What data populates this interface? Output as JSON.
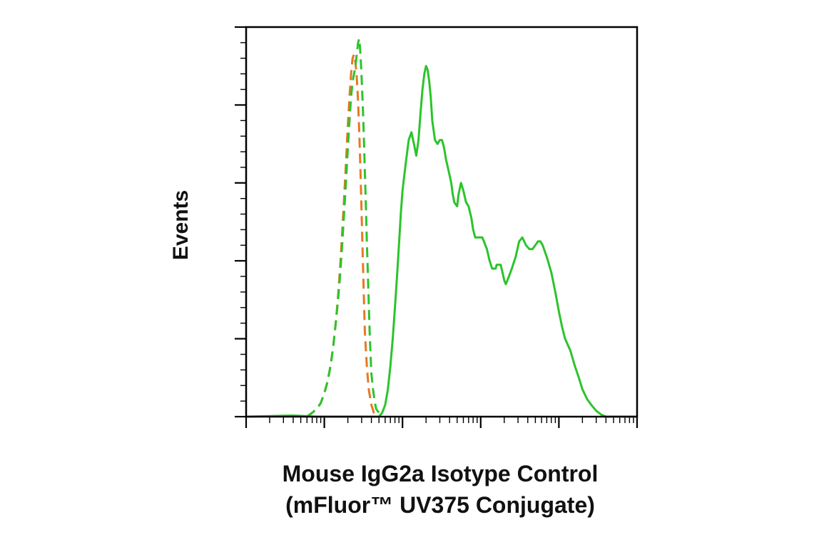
{
  "chart_data": {
    "type": "line",
    "title": "",
    "xlabel_lines": [
      "Mouse IgG2a Isotype Control",
      "(mFluor™ UV375 Conjugate)"
    ],
    "ylabel": "Events",
    "x_scale": "log",
    "xlim": [
      1,
      100000
    ],
    "ylim": [
      0,
      100
    ],
    "grid": false,
    "legend": "none",
    "series": [
      {
        "color": "#e87722",
        "style": "dashed",
        "points": [
          [
            6,
            0
          ],
          [
            7,
            1
          ],
          [
            8,
            2
          ],
          [
            9,
            3.5
          ],
          [
            10,
            6
          ],
          [
            11,
            9
          ],
          [
            12,
            13
          ],
          [
            13,
            18
          ],
          [
            14,
            24
          ],
          [
            15,
            31
          ],
          [
            16,
            39
          ],
          [
            17,
            48
          ],
          [
            18,
            57
          ],
          [
            19,
            66
          ],
          [
            20,
            75
          ],
          [
            21,
            82
          ],
          [
            22,
            88
          ],
          [
            23,
            92
          ],
          [
            24,
            93
          ],
          [
            25,
            91
          ],
          [
            26,
            87
          ],
          [
            27,
            81
          ],
          [
            28,
            73
          ],
          [
            29,
            63
          ],
          [
            30,
            52
          ],
          [
            31,
            41
          ],
          [
            32,
            31
          ],
          [
            33,
            22
          ],
          [
            35,
            13
          ],
          [
            37,
            7
          ],
          [
            40,
            3
          ],
          [
            43,
            1
          ],
          [
            46,
            0
          ]
        ]
      },
      {
        "color": "#2bc42b",
        "style": "dashed",
        "points": [
          [
            6,
            0
          ],
          [
            7,
            1
          ],
          [
            8,
            2
          ],
          [
            9,
            3.5
          ],
          [
            10,
            6
          ],
          [
            11,
            9
          ],
          [
            12,
            13
          ],
          [
            13,
            18
          ],
          [
            14,
            24
          ],
          [
            15,
            30
          ],
          [
            16,
            37
          ],
          [
            17,
            45
          ],
          [
            18,
            53
          ],
          [
            19,
            61
          ],
          [
            20,
            69
          ],
          [
            21,
            76
          ],
          [
            22,
            82
          ],
          [
            23,
            86
          ],
          [
            24,
            88
          ],
          [
            25,
            90
          ],
          [
            26,
            93
          ],
          [
            27,
            96
          ],
          [
            28,
            97
          ],
          [
            29,
            93
          ],
          [
            30,
            87
          ],
          [
            31,
            80
          ],
          [
            32,
            72
          ],
          [
            33,
            63
          ],
          [
            34,
            54
          ],
          [
            35,
            45
          ],
          [
            36,
            37
          ],
          [
            37,
            29
          ],
          [
            38,
            22
          ],
          [
            39,
            16
          ],
          [
            40,
            11
          ],
          [
            42,
            7
          ],
          [
            44,
            4
          ],
          [
            46,
            2
          ],
          [
            50,
            1
          ],
          [
            55,
            0
          ]
        ]
      },
      {
        "color": "#2bc42b",
        "style": "solid",
        "points": [
          [
            1,
            0
          ],
          [
            4,
            0.3
          ],
          [
            8,
            0
          ],
          [
            50,
            0
          ],
          [
            55,
            1
          ],
          [
            60,
            3
          ],
          [
            65,
            7
          ],
          [
            70,
            13
          ],
          [
            75,
            20
          ],
          [
            80,
            28
          ],
          [
            85,
            36
          ],
          [
            90,
            44
          ],
          [
            95,
            52
          ],
          [
            100,
            58
          ],
          [
            110,
            65
          ],
          [
            120,
            71
          ],
          [
            130,
            73
          ],
          [
            140,
            70
          ],
          [
            150,
            67
          ],
          [
            160,
            71
          ],
          [
            170,
            78
          ],
          [
            180,
            84
          ],
          [
            190,
            88
          ],
          [
            200,
            90
          ],
          [
            210,
            89
          ],
          [
            220,
            86
          ],
          [
            230,
            82
          ],
          [
            240,
            76
          ],
          [
            260,
            71
          ],
          [
            280,
            70
          ],
          [
            300,
            71
          ],
          [
            320,
            71
          ],
          [
            340,
            69
          ],
          [
            360,
            66
          ],
          [
            400,
            62
          ],
          [
            420,
            60
          ],
          [
            440,
            57
          ],
          [
            460,
            55
          ],
          [
            500,
            54
          ],
          [
            520,
            57
          ],
          [
            560,
            60
          ],
          [
            600,
            58
          ],
          [
            650,
            55
          ],
          [
            700,
            54
          ],
          [
            760,
            51
          ],
          [
            800,
            48
          ],
          [
            850,
            46
          ],
          [
            900,
            46
          ],
          [
            1000,
            46
          ],
          [
            1050,
            46
          ],
          [
            1100,
            45
          ],
          [
            1200,
            43
          ],
          [
            1300,
            40
          ],
          [
            1400,
            38
          ],
          [
            1500,
            38
          ],
          [
            1550,
            38
          ],
          [
            1600,
            39
          ],
          [
            1700,
            39
          ],
          [
            1800,
            39
          ],
          [
            1900,
            37
          ],
          [
            2000,
            35
          ],
          [
            2100,
            34
          ],
          [
            2300,
            36
          ],
          [
            2500,
            38
          ],
          [
            2800,
            41
          ],
          [
            3100,
            45
          ],
          [
            3400,
            46
          ],
          [
            3600,
            45
          ],
          [
            3800,
            44
          ],
          [
            4200,
            43
          ],
          [
            4600,
            43
          ],
          [
            5000,
            44
          ],
          [
            5400,
            45
          ],
          [
            5800,
            45
          ],
          [
            6200,
            44
          ],
          [
            7000,
            41
          ],
          [
            8000,
            37
          ],
          [
            9000,
            32
          ],
          [
            10000,
            27
          ],
          [
            11000,
            23
          ],
          [
            12000,
            20
          ],
          [
            14000,
            17
          ],
          [
            16000,
            13
          ],
          [
            18000,
            10
          ],
          [
            20000,
            7
          ],
          [
            23000,
            4.5
          ],
          [
            26000,
            3
          ],
          [
            30000,
            1.5
          ],
          [
            35000,
            0.5
          ],
          [
            40000,
            0
          ],
          [
            100000,
            0
          ]
        ]
      }
    ]
  }
}
